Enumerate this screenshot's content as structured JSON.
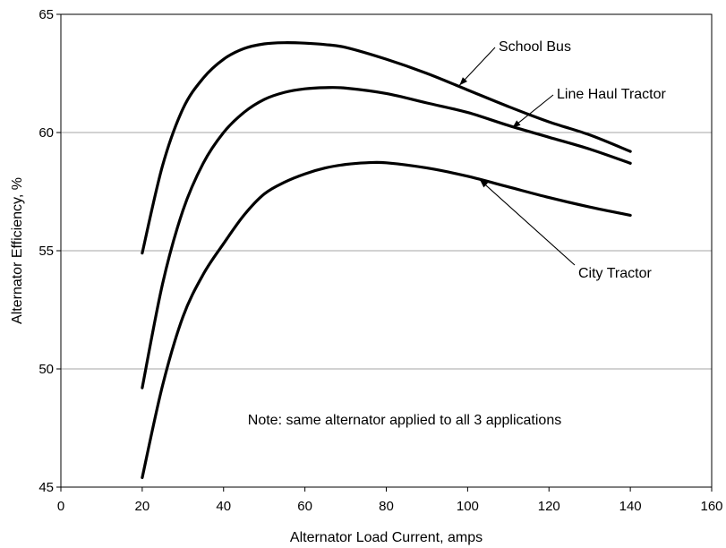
{
  "chart_data": {
    "type": "line",
    "title": "",
    "xlabel": "Alternator Load Current, amps",
    "ylabel": "Alternator Efficiency, %",
    "xlim": [
      0,
      160
    ],
    "ylim": [
      45,
      65
    ],
    "x_ticks": [
      0,
      20,
      40,
      60,
      80,
      100,
      120,
      140,
      160
    ],
    "y_ticks": [
      45,
      50,
      55,
      60,
      65
    ],
    "grid": "horizontal",
    "legend": "none",
    "note": "Note: same alternator applied to all 3 applications",
    "series": [
      {
        "name": "School Bus",
        "x": [
          20,
          25,
          30,
          35,
          40,
          45,
          50,
          55,
          60,
          65,
          70,
          80,
          90,
          100,
          110,
          120,
          130,
          140
        ],
        "y": [
          54.9,
          58.6,
          61.0,
          62.3,
          63.1,
          63.55,
          63.75,
          63.8,
          63.78,
          63.72,
          63.6,
          63.1,
          62.5,
          61.8,
          61.1,
          60.45,
          59.9,
          59.2
        ]
      },
      {
        "name": "Line Haul Tractor",
        "x": [
          20,
          25,
          30,
          35,
          40,
          45,
          50,
          55,
          60,
          65,
          70,
          80,
          90,
          100,
          110,
          120,
          130,
          140
        ],
        "y": [
          49.2,
          53.6,
          56.7,
          58.7,
          60.0,
          60.85,
          61.4,
          61.7,
          61.85,
          61.9,
          61.88,
          61.65,
          61.25,
          60.85,
          60.3,
          59.8,
          59.3,
          58.7
        ]
      },
      {
        "name": "City Tractor",
        "x": [
          20,
          25,
          30,
          35,
          40,
          45,
          50,
          55,
          60,
          65,
          70,
          75,
          80,
          90,
          100,
          110,
          120,
          130,
          140
        ],
        "y": [
          45.4,
          49.3,
          52.2,
          54.0,
          55.3,
          56.5,
          57.4,
          57.9,
          58.25,
          58.5,
          58.65,
          58.72,
          58.72,
          58.5,
          58.15,
          57.7,
          57.25,
          56.85,
          56.5
        ]
      }
    ],
    "annotations": [
      {
        "text": "School Bus",
        "series": "School Bus",
        "point_x": 98,
        "point_y": 62.0
      },
      {
        "text": "Line Haul Tractor",
        "series": "Line Haul Tractor",
        "point_x": 111,
        "point_y": 60.2
      },
      {
        "text": "City Tractor",
        "series": "City Tractor",
        "point_x": 103,
        "point_y": 58.0
      }
    ]
  }
}
